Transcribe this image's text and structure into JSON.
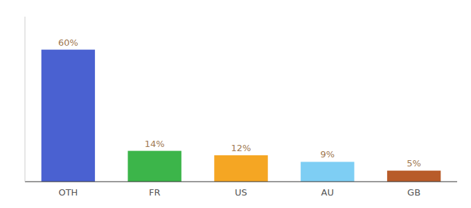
{
  "chart_data": {
    "type": "bar",
    "categories": [
      "OTH",
      "FR",
      "US",
      "AU",
      "GB"
    ],
    "values": [
      60,
      14,
      12,
      9,
      5
    ],
    "value_labels": [
      "60%",
      "14%",
      "12%",
      "9%",
      "5%"
    ],
    "data_labels": true,
    "colors": [
      "#4a61d1",
      "#3cb54a",
      "#f5a623",
      "#7ecef4",
      "#b85c2a"
    ],
    "ylim": [
      0,
      75
    ],
    "grid": false,
    "tick_labels": "x"
  }
}
